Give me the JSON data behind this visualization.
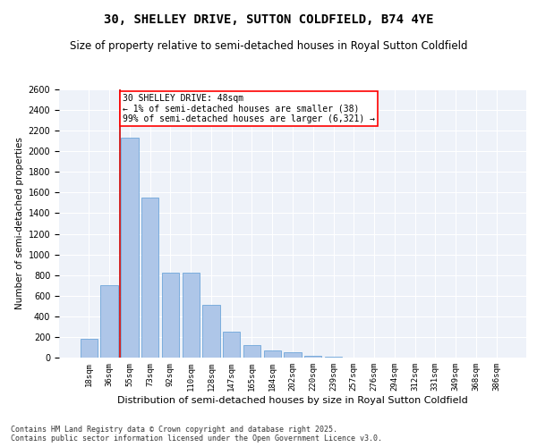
{
  "title": "30, SHELLEY DRIVE, SUTTON COLDFIELD, B74 4YE",
  "subtitle": "Size of property relative to semi-detached houses in Royal Sutton Coldfield",
  "xlabel": "Distribution of semi-detached houses by size in Royal Sutton Coldfield",
  "ylabel": "Number of semi-detached properties",
  "categories": [
    "18sqm",
    "36sqm",
    "55sqm",
    "73sqm",
    "92sqm",
    "110sqm",
    "128sqm",
    "147sqm",
    "165sqm",
    "184sqm",
    "202sqm",
    "220sqm",
    "239sqm",
    "257sqm",
    "276sqm",
    "294sqm",
    "312sqm",
    "331sqm",
    "349sqm",
    "368sqm",
    "386sqm"
  ],
  "values": [
    180,
    700,
    2130,
    1550,
    820,
    820,
    510,
    255,
    125,
    70,
    50,
    20,
    5,
    2,
    1,
    0,
    0,
    1,
    0,
    0,
    0
  ],
  "bar_color": "#aec6e8",
  "bar_edge_color": "#5b9bd5",
  "marker_color": "#cc0000",
  "annotation_text": "30 SHELLEY DRIVE: 48sqm\n← 1% of semi-detached houses are smaller (38)\n99% of semi-detached houses are larger (6,321) →",
  "ylim": [
    0,
    2600
  ],
  "yticks": [
    0,
    200,
    400,
    600,
    800,
    1000,
    1200,
    1400,
    1600,
    1800,
    2000,
    2200,
    2400,
    2600
  ],
  "background_color": "#eef2f9",
  "footer": "Contains HM Land Registry data © Crown copyright and database right 2025.\nContains public sector information licensed under the Open Government Licence v3.0.",
  "title_fontsize": 10,
  "subtitle_fontsize": 8.5,
  "xlabel_fontsize": 8,
  "ylabel_fontsize": 7.5,
  "annotation_fontsize": 7,
  "footer_fontsize": 6,
  "tick_fontsize": 7,
  "xtick_fontsize": 6.5
}
